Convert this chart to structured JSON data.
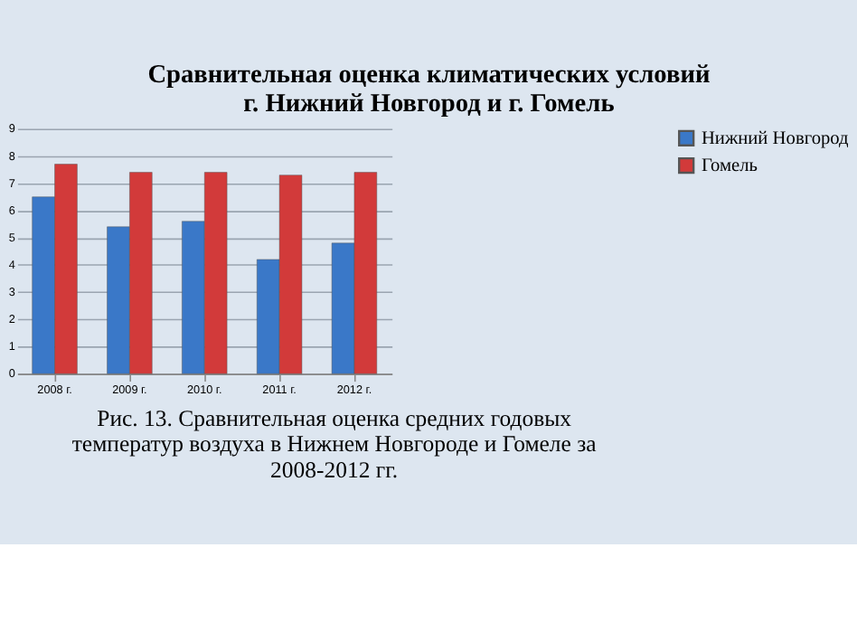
{
  "chart_data": {
    "type": "bar",
    "title": "Сравнительная оценка климатических условий г. Нижний Новгород и г. Гомель",
    "categories": [
      "2008 г.",
      "2009 г.",
      "2010 г.",
      "2011 г.",
      "2012 г."
    ],
    "series": [
      {
        "name": "Нижний Новгород",
        "color": "#3a78c8",
        "values": [
          6.5,
          5.4,
          5.6,
          4.2,
          4.8
        ]
      },
      {
        "name": "Гомель",
        "color": "#d23a3a",
        "values": [
          7.7,
          7.4,
          7.4,
          7.3,
          7.4
        ]
      }
    ],
    "ylim": [
      0,
      9
    ],
    "yticks": [
      0,
      1,
      2,
      3,
      4,
      5,
      6,
      7,
      8,
      9
    ],
    "grid": "y",
    "legend": "right",
    "annotations": [
      "Рис. 13.  Сравнительная оценка средних годовых температур воздуха в Нижнем Новгороде и Гомеле за 2008-2012 гг."
    ]
  }
}
